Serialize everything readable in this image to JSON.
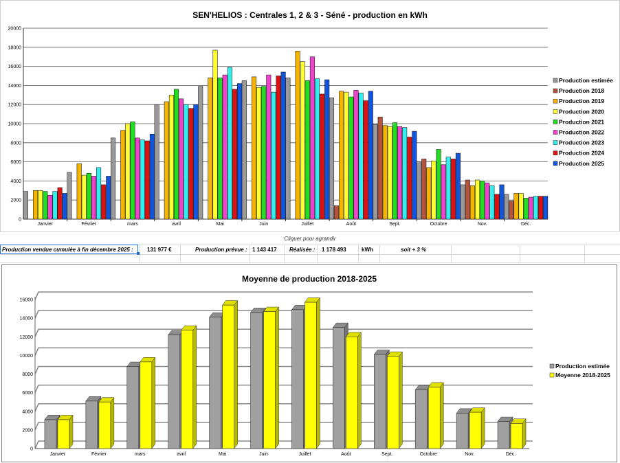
{
  "months": [
    "Janvier",
    "Février",
    "mars",
    "avril",
    "Mai",
    "Juin",
    "Juillet",
    "Août",
    "Sept.",
    "Octobre",
    "Nov.",
    "Déc."
  ],
  "chart_data": [
    {
      "type": "bar",
      "title": "SEN'HELIOS : Centrales 1, 2 & 3 - Séné - production en kWh",
      "ylim": [
        0,
        20000
      ],
      "yticks": [
        "0",
        "2000",
        "4000",
        "6000",
        "8000",
        "10000",
        "12000",
        "14000",
        "16000",
        "18000",
        "20000"
      ],
      "categories": [
        "Janvier",
        "Février",
        "mars",
        "avril",
        "Mai",
        "Juin",
        "Juillet",
        "Août",
        "Sept.",
        "Octobre",
        "Nov.",
        "Déc."
      ],
      "legend_position": "right",
      "series": [
        {
          "name": "Production estimée",
          "color": "#9a9a9a",
          "values": [
            2900,
            4900,
            8500,
            12000,
            13900,
            14500,
            14800,
            12700,
            9900,
            6000,
            3600,
            2600
          ]
        },
        {
          "name": "Production 2018",
          "color": "#b5533c",
          "values": [
            0,
            0,
            0,
            0,
            0,
            0,
            0,
            1400,
            10700,
            6300,
            4100,
            1900
          ]
        },
        {
          "name": "Production 2019",
          "color": "#f5b400",
          "values": [
            3000,
            5800,
            9300,
            12300,
            14800,
            14900,
            17600,
            13400,
            9800,
            5400,
            3500,
            2700
          ]
        },
        {
          "name": "Production 2020",
          "color": "#ffff33",
          "values": [
            3000,
            4600,
            10000,
            13000,
            17700,
            13800,
            16500,
            13300,
            9700,
            6100,
            4100,
            2700
          ]
        },
        {
          "name": "Production 2021",
          "color": "#22dd22",
          "values": [
            2900,
            4800,
            10200,
            13600,
            14800,
            13900,
            14500,
            12800,
            10100,
            7300,
            4000,
            2200
          ]
        },
        {
          "name": "Production 2022",
          "color": "#ee44cc",
          "values": [
            2500,
            4500,
            8500,
            12600,
            15100,
            15100,
            17000,
            13500,
            9700,
            5700,
            3800,
            2300
          ]
        },
        {
          "name": "Production 2023",
          "color": "#33eeee",
          "values": [
            2900,
            5400,
            8300,
            12000,
            15900,
            13300,
            14700,
            13200,
            9600,
            6500,
            3500,
            2400
          ]
        },
        {
          "name": "Production 2024",
          "color": "#dd1111",
          "values": [
            3300,
            3600,
            8200,
            11600,
            13600,
            15000,
            13100,
            12400,
            8600,
            6300,
            2600,
            2400
          ]
        },
        {
          "name": "Production 2025",
          "color": "#1155dd",
          "values": [
            2700,
            4500,
            8900,
            12000,
            14200,
            15400,
            14600,
            13400,
            9200,
            6900,
            3600,
            2400
          ]
        }
      ]
    },
    {
      "type": "bar",
      "title": "Moyenne de production 2018-2025",
      "ylim": [
        0,
        16000
      ],
      "yticks": [
        "0",
        "2000",
        "4000",
        "6000",
        "8000",
        "10000",
        "12000",
        "14000",
        "16000"
      ],
      "categories": [
        "Janvier",
        "Février",
        "mars",
        "avril",
        "Mai",
        "Juin",
        "Juillet",
        "Août",
        "Sept.",
        "Octobre",
        "Nov.",
        "Déc."
      ],
      "legend_position": "right",
      "series": [
        {
          "name": "Production estimée",
          "color": "#a0a0a0",
          "values": [
            3100,
            5100,
            8800,
            12200,
            14100,
            14600,
            14900,
            13000,
            10100,
            6300,
            3800,
            2900
          ]
        },
        {
          "name": "Moyenne 2018-2025",
          "color": "#ffff00",
          "values": [
            3100,
            5000,
            9300,
            12700,
            15400,
            14700,
            15700,
            12000,
            9900,
            6600,
            3900,
            2700
          ]
        }
      ]
    }
  ],
  "caption": "Cliquer pour agrandir",
  "summary": {
    "label": "Production vendue cumulée à fin décembre 2025 :",
    "amount": "131 977 €",
    "forecast_label": "Production prévue :",
    "forecast_value": "1 143 417",
    "actual_label": "Réalisée :",
    "actual_value": "1 178 493",
    "unit": "kWh",
    "ratio": "soit + 3 %"
  }
}
